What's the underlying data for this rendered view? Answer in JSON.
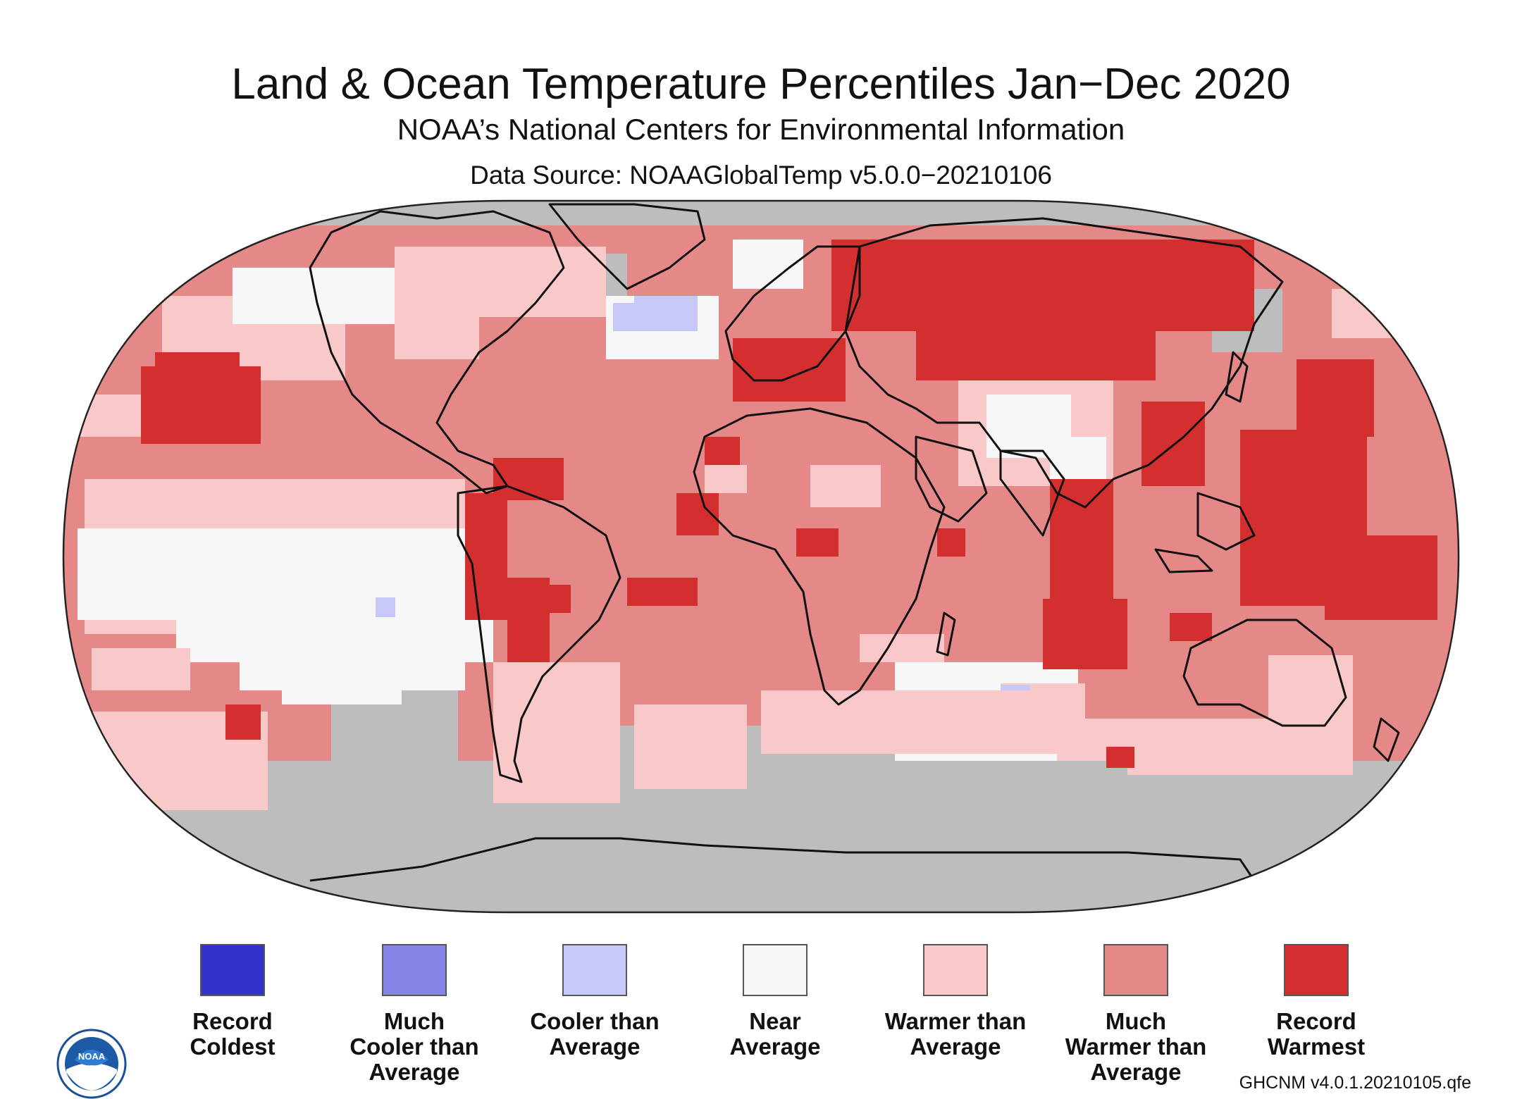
{
  "header": {
    "title": "Land & Ocean Temperature Percentiles Jan−Dec 2020",
    "subtitle": "NOAA’s National Centers for Environmental Information",
    "source": "Data Source: NOAAGlobalTemp v5.0.0−20210106"
  },
  "legend": [
    {
      "label": "Record\nColdest",
      "color": "#3333cc"
    },
    {
      "label": "Much\nCooler than\nAverage",
      "color": "#8585e6"
    },
    {
      "label": "Cooler than\nAverage",
      "color": "#c8c8f8"
    },
    {
      "label": "Near\nAverage",
      "color": "#f7f7f7"
    },
    {
      "label": "Warmer than\nAverage",
      "color": "#f9c9c9"
    },
    {
      "label": "Much\nWarmer than\nAverage",
      "color": "#e58888"
    },
    {
      "label": "Record\nWarmest",
      "color": "#d42f2f"
    }
  ],
  "footer": {
    "version": "GHCNM v4.0.1.20210105.qfe",
    "logo": "NOAA"
  },
  "colors": {
    "no_data": "#bdbdbd",
    "coastline": "#111111"
  }
}
